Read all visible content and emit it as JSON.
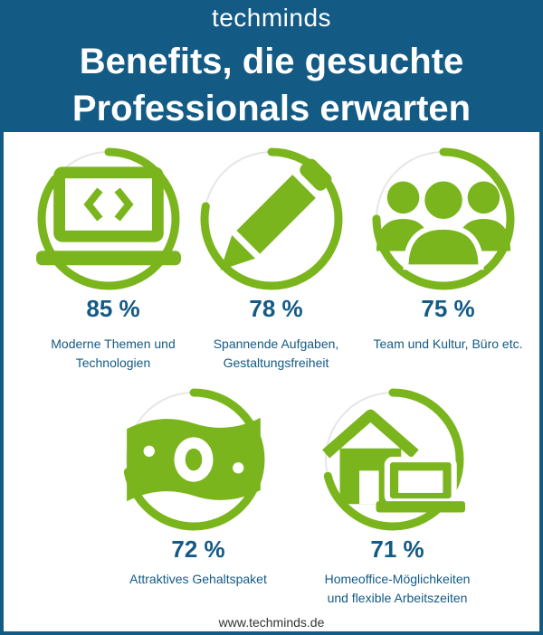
{
  "header": {
    "logo": "techminds",
    "title_lines": [
      "Benefits, die gesuchte",
      "Professionals erwarten"
    ]
  },
  "colors": {
    "header_bg": "#135a85",
    "ring_fill": "#7ab51d",
    "ring_track": "#e6e6e6",
    "text_blue": "#135a85"
  },
  "chart_data": {
    "type": "ring-percentage",
    "title": "Benefits, die gesuchte Professionals erwarten",
    "items": [
      {
        "value": 85,
        "value_label": "85 %",
        "label_lines": [
          "Moderne Themen und",
          "Technologien"
        ],
        "icon": "laptop-code-icon"
      },
      {
        "value": 78,
        "value_label": "78 %",
        "label_lines": [
          "Spannende Aufgaben,",
          "Gestaltungsfreiheit"
        ],
        "icon": "pencil-icon"
      },
      {
        "value": 75,
        "value_label": "75 %",
        "label_lines": [
          "Team und Kultur, Büro etc."
        ],
        "icon": "team-icon"
      },
      {
        "value": 72,
        "value_label": "72 %",
        "label_lines": [
          "Attraktives Gehaltspaket"
        ],
        "icon": "money-bill-icon"
      },
      {
        "value": 71,
        "value_label": "71 %",
        "label_lines": [
          "Homeoffice-Möglichkeiten",
          "und flexible Arbeitszeiten"
        ],
        "icon": "home-office-icon"
      }
    ]
  },
  "footer": {
    "website": "www.techminds.de"
  }
}
